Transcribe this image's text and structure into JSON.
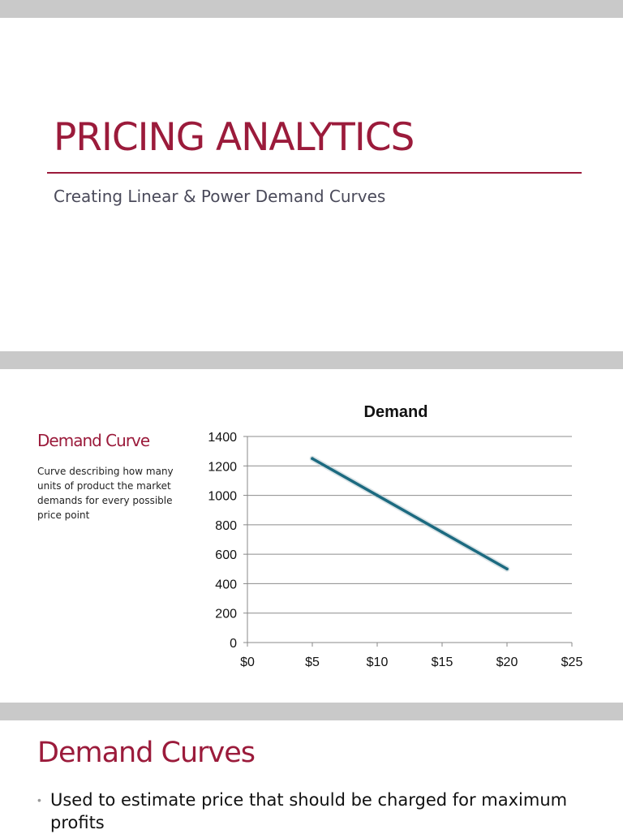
{
  "slide1": {
    "title": "PRICING ANALYTICS",
    "subtitle": "Creating Linear & Power Demand Curves",
    "accent_color": "#9b1b3b"
  },
  "slide2": {
    "heading": "Demand Curve",
    "body": "Curve describing how many units of product the market demands for every possible price point"
  },
  "slide3": {
    "title": "Demand Curves",
    "bullets": [
      "Used to estimate price that should be charged for maximum profits"
    ]
  },
  "chart_data": {
    "type": "line",
    "title": "Demand",
    "xlabel": "",
    "ylabel": "",
    "x": [
      5,
      10,
      15,
      20
    ],
    "series": [
      {
        "values": [
          1250,
          1000,
          750,
          500
        ],
        "color": "#1c6a80"
      }
    ],
    "xlim": [
      0,
      25
    ],
    "ylim": [
      0,
      1400
    ],
    "x_ticks": [
      0,
      5,
      10,
      15,
      20,
      25
    ],
    "x_tick_labels": [
      "$0",
      "$5",
      "$10",
      "$15",
      "$20",
      "$25"
    ],
    "y_ticks": [
      0,
      200,
      400,
      600,
      800,
      1000,
      1200,
      1400
    ],
    "y_tick_labels": [
      "0",
      "200",
      "400",
      "600",
      "800",
      "1000",
      "1200",
      "1400"
    ],
    "grid": "horizontal",
    "legend": "none"
  }
}
